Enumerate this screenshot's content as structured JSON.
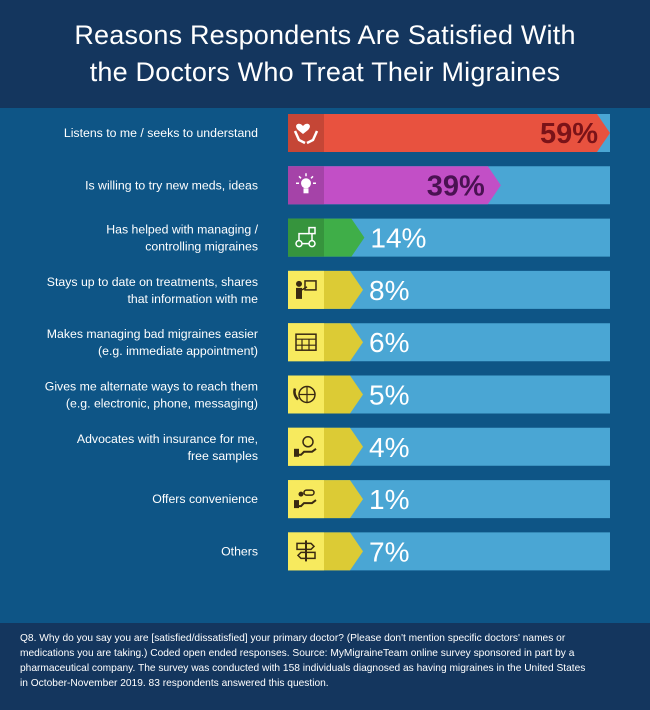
{
  "title": {
    "line1": "Reasons Respondents Are Satisfied With",
    "line2": "the Doctors Who Treat Their Migraines"
  },
  "chart_data": {
    "type": "bar",
    "categories": [
      [
        "Listens to me / seeks to understand"
      ],
      [
        "Is willing to try new meds, ideas"
      ],
      [
        "Has helped with managing /",
        "controlling migraines"
      ],
      [
        "Stays up to date on treatments, shares",
        "that information with me"
      ],
      [
        "Makes managing bad migraines easier",
        "(e.g. immediate appointment)"
      ],
      [
        "Gives me alternate ways to reach them",
        "(e.g. electronic, phone, messaging)"
      ],
      [
        "Advocates with insurance for me,",
        "free samples"
      ],
      [
        "Offers convenience"
      ],
      [
        "Others"
      ]
    ],
    "values": [
      59,
      39,
      14,
      8,
      6,
      5,
      4,
      1,
      7
    ],
    "value_labels": [
      "59%",
      "39%",
      "14%",
      "8%",
      "6%",
      "5%",
      "4%",
      "1%",
      "7%"
    ],
    "icons": [
      "hands-heart-icon",
      "lightbulb-icon",
      "flowchart-icon",
      "presenter-icon",
      "calendar-icon",
      "globe-phone-icon",
      "money-hand-icon",
      "pills-hand-icon",
      "signpost-icon"
    ],
    "ylim": [
      0,
      59
    ],
    "colors": {
      "bar_1": "#e8523f",
      "bar_2": "#c24fc6",
      "bar_3": "#3fae48",
      "bar_rest": "#dccb35",
      "track": "#4aa6d4",
      "dark_label": "#7a1318",
      "purple_label": "#4a1252"
    }
  },
  "footer": {
    "lines": [
      "Q8. Why do you say you are [satisfied/dissatisfied] your primary doctor? (Please don't mention specific doctors' names or",
      "medications you are taking.) Coded open ended responses. Source: MyMigraineTeam online survey sponsored in part by a",
      "pharmaceutical company. The survey was conducted with 158 individuals diagnosed as having migraines in the United States",
      "in October-November 2019. 83 respondents answered this question."
    ]
  }
}
